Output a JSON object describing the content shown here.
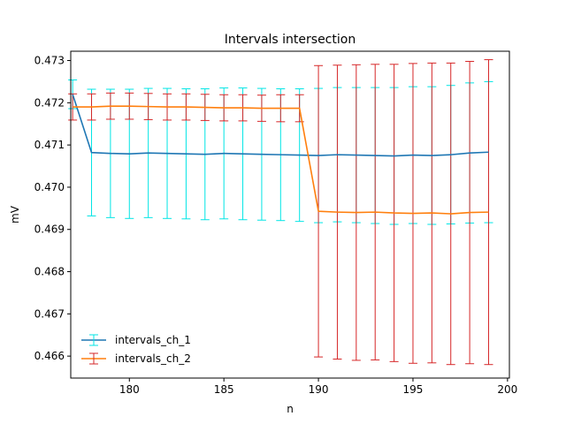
{
  "chart_data": {
    "type": "line",
    "title": "Intervals intersection",
    "xlabel": "n",
    "ylabel": "mV",
    "xlim": [
      176.9,
      200.1
    ],
    "ylim": [
      0.46548,
      0.47322
    ],
    "xticks": [
      180,
      185,
      190,
      195,
      200
    ],
    "yticks": [
      0.466,
      0.467,
      0.468,
      0.469,
      0.47,
      0.471,
      0.472,
      0.473
    ],
    "grid": false,
    "legend_position": "lower-left",
    "series": [
      {
        "name": "intervals_ch_1",
        "line_color": "#1f77b4",
        "error_color": "#00e5e5",
        "x": [
          177,
          178,
          179,
          180,
          181,
          182,
          183,
          184,
          185,
          186,
          187,
          188,
          189,
          190,
          191,
          192,
          193,
          194,
          195,
          196,
          197,
          198,
          199
        ],
        "y": [
          0.4722,
          0.47082,
          0.4708,
          0.47079,
          0.47081,
          0.4708,
          0.47079,
          0.47078,
          0.4708,
          0.47079,
          0.47078,
          0.47077,
          0.47076,
          0.47075,
          0.47077,
          0.47076,
          0.47075,
          0.47074,
          0.47076,
          0.47075,
          0.47077,
          0.47081,
          0.47083
        ],
        "err": [
          0.00034,
          0.0015,
          0.00152,
          0.00153,
          0.00153,
          0.00154,
          0.00154,
          0.00155,
          0.00155,
          0.00156,
          0.00156,
          0.00156,
          0.00157,
          0.00159,
          0.00159,
          0.0016,
          0.00161,
          0.00162,
          0.00162,
          0.00163,
          0.00164,
          0.00166,
          0.00167
        ]
      },
      {
        "name": "intervals_ch_2",
        "line_color": "#ff7f0e",
        "error_color": "#d62728",
        "x": [
          177,
          178,
          179,
          180,
          181,
          182,
          183,
          184,
          185,
          186,
          187,
          188,
          189,
          190,
          191,
          192,
          193,
          194,
          195,
          196,
          197,
          198,
          199
        ],
        "y": [
          0.4719,
          0.4719,
          0.47192,
          0.47192,
          0.47191,
          0.4719,
          0.4719,
          0.47189,
          0.47188,
          0.47188,
          0.47187,
          0.47187,
          0.47187,
          0.46943,
          0.46941,
          0.4694,
          0.46941,
          0.46939,
          0.46938,
          0.46939,
          0.46937,
          0.4694,
          0.46941
        ],
        "err": [
          0.00031,
          0.00031,
          0.00031,
          0.00031,
          0.00031,
          0.00031,
          0.00031,
          0.00031,
          0.00031,
          0.00031,
          0.00031,
          0.00032,
          0.00032,
          0.00345,
          0.00348,
          0.0035,
          0.0035,
          0.00352,
          0.00355,
          0.00355,
          0.00357,
          0.00358,
          0.00361
        ]
      }
    ]
  }
}
